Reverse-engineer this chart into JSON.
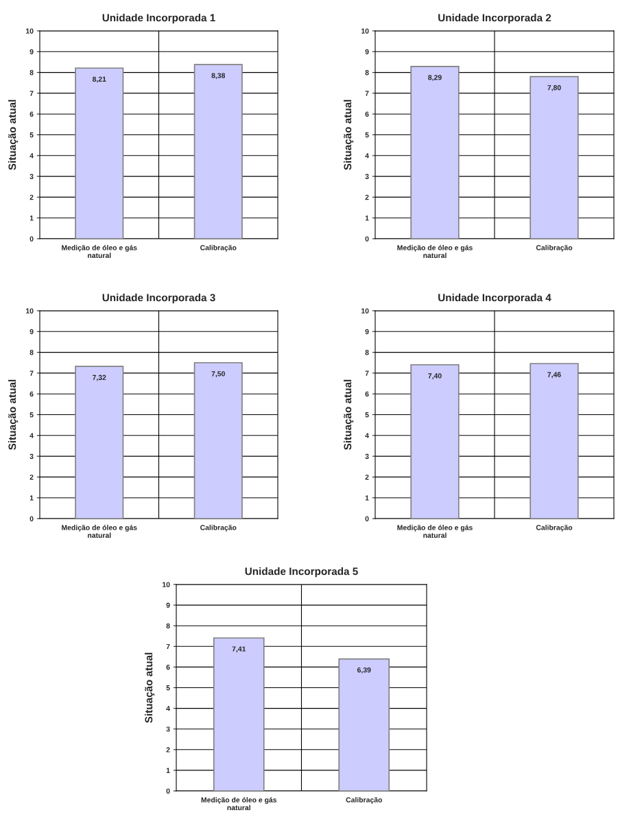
{
  "chart_data": [
    {
      "type": "bar",
      "title": "Unidade Incorporada 1",
      "ylabel": "Situação atual",
      "categories": [
        "Medição de óleo e gás natural",
        "Calibração"
      ],
      "values": [
        8.21,
        8.38
      ],
      "value_labels": [
        "8,21",
        "8,38"
      ],
      "color": "#ccccff",
      "ylim": [
        0,
        10
      ],
      "yticks": [
        0,
        1,
        2,
        3,
        4,
        5,
        6,
        7,
        8,
        9,
        10
      ],
      "grid": true,
      "legend": false
    },
    {
      "type": "bar",
      "title": "Unidade Incorporada 2",
      "ylabel": "Situação atual",
      "categories": [
        "Medição de óleo e gás natural",
        "Calibração"
      ],
      "values": [
        8.29,
        7.8
      ],
      "value_labels": [
        "8,29",
        "7,80"
      ],
      "color": "#ccccff",
      "ylim": [
        0,
        10
      ],
      "yticks": [
        0,
        1,
        2,
        3,
        4,
        5,
        6,
        7,
        8,
        9,
        10
      ],
      "grid": true,
      "legend": false
    },
    {
      "type": "bar",
      "title": "Unidade Incorporada 3",
      "ylabel": "Situação atual",
      "categories": [
        "Medição de óleo e gás natural",
        "Calibração"
      ],
      "values": [
        7.32,
        7.5
      ],
      "value_labels": [
        "7,32",
        "7,50"
      ],
      "color": "#ccccff",
      "ylim": [
        0,
        10
      ],
      "yticks": [
        0,
        1,
        2,
        3,
        4,
        5,
        6,
        7,
        8,
        9,
        10
      ],
      "grid": true,
      "legend": false
    },
    {
      "type": "bar",
      "title": "Unidade Incorporada 4",
      "ylabel": "Situação atual",
      "categories": [
        "Medição de óleo e gás natural",
        "Calibração"
      ],
      "values": [
        7.4,
        7.46
      ],
      "value_labels": [
        "7,40",
        "7,46"
      ],
      "color": "#ccccff",
      "ylim": [
        0,
        10
      ],
      "yticks": [
        0,
        1,
        2,
        3,
        4,
        5,
        6,
        7,
        8,
        9,
        10
      ],
      "grid": true,
      "legend": false
    },
    {
      "type": "bar",
      "title": "Unidade Incorporada 5",
      "ylabel": "Situação atual",
      "categories": [
        "Medição de óleo e gás natural",
        "Calibração"
      ],
      "values": [
        7.41,
        6.39
      ],
      "value_labels": [
        "7,41",
        "6,39"
      ],
      "color": "#ccccff",
      "ylim": [
        0,
        10
      ],
      "yticks": [
        0,
        1,
        2,
        3,
        4,
        5,
        6,
        7,
        8,
        9,
        10
      ],
      "grid": true,
      "legend": false
    }
  ]
}
